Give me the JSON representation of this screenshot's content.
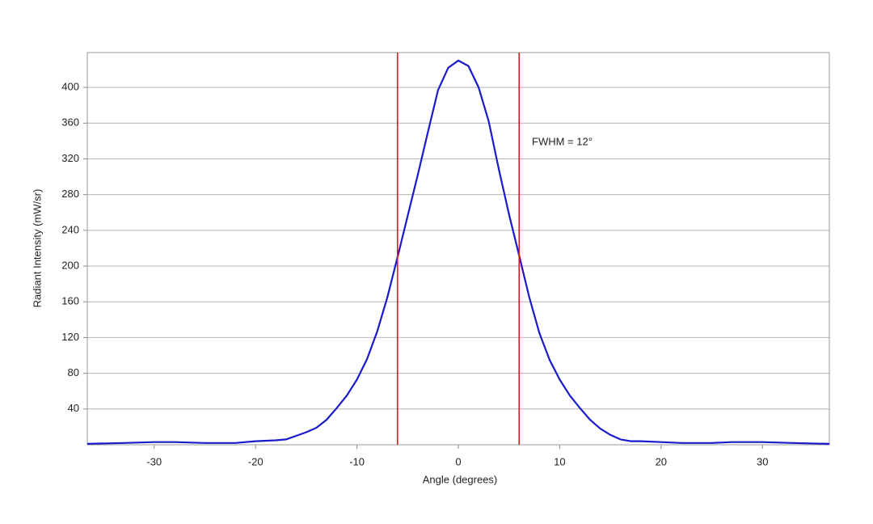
{
  "chart_data": {
    "type": "line",
    "x_label": "Angle (degrees)",
    "y_label": "Radiant Intensity (mW/sr)",
    "annotation": "FWHM = 12°",
    "x": [
      -36.6,
      -33,
      -30,
      -28,
      -25,
      -22,
      -20,
      -18,
      -17,
      -16,
      -15,
      -14,
      -13,
      -12,
      -11,
      -10,
      -9,
      -8,
      -7,
      -6,
      -5,
      -4,
      -3,
      -2,
      -1,
      0,
      1,
      2,
      3,
      4,
      5,
      6,
      7,
      8,
      9,
      10,
      11,
      12,
      13,
      14,
      15,
      16,
      17,
      18,
      20,
      22,
      25,
      27,
      30,
      33,
      36.6
    ],
    "values": [
      1,
      2,
      3,
      3,
      2,
      2,
      4,
      5,
      6,
      10,
      14,
      19,
      28,
      41,
      55,
      73,
      96,
      127,
      165,
      210,
      256,
      302,
      350,
      397,
      422,
      430,
      424,
      400,
      362,
      308,
      258,
      212,
      165,
      125,
      95,
      73,
      55,
      41,
      28,
      18,
      11,
      6,
      4,
      4,
      3,
      2,
      2,
      3,
      3,
      2,
      1
    ],
    "color": "#1a1acc",
    "vlines": [
      -6,
      6
    ],
    "vline_color": "#cc2222",
    "xlim": [
      -36.6,
      36.6
    ],
    "ylim": [
      0,
      439
    ],
    "xticks": [
      -30,
      -20,
      -10,
      0,
      10,
      20,
      30
    ],
    "yticks": [
      40,
      80,
      120,
      160,
      200,
      240,
      280,
      320,
      360,
      400
    ],
    "grid": true
  }
}
